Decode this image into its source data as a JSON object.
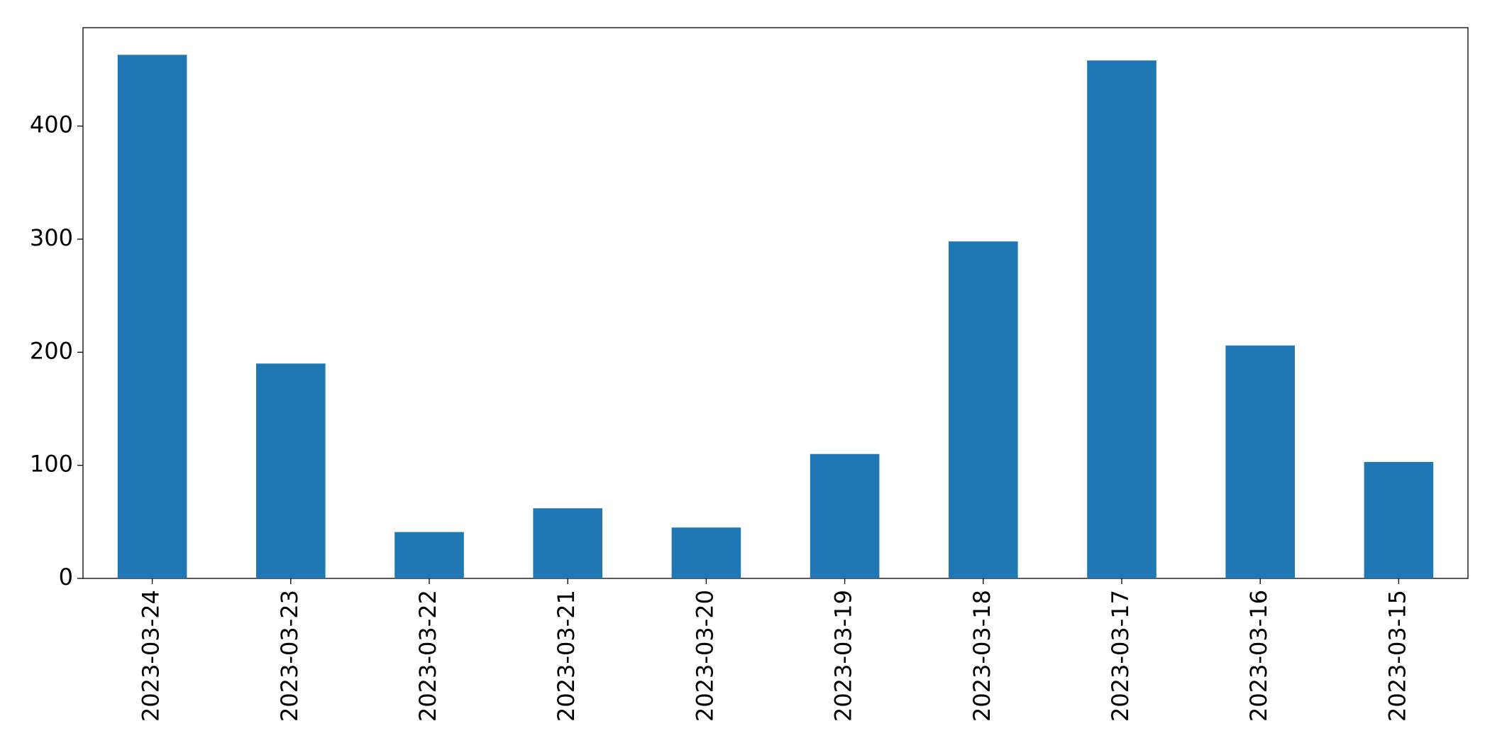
{
  "chart_data": {
    "type": "bar",
    "categories": [
      "2023-03-24",
      "2023-03-23",
      "2023-03-22",
      "2023-03-21",
      "2023-03-20",
      "2023-03-19",
      "2023-03-18",
      "2023-03-17",
      "2023-03-16",
      "2023-03-15"
    ],
    "values": [
      463,
      190,
      41,
      62,
      45,
      110,
      298,
      458,
      206,
      103
    ],
    "color": "#1f77b4",
    "ylim": [
      0,
      487
    ],
    "yticks": [
      0,
      100,
      200,
      300,
      400
    ],
    "grid": false
  }
}
